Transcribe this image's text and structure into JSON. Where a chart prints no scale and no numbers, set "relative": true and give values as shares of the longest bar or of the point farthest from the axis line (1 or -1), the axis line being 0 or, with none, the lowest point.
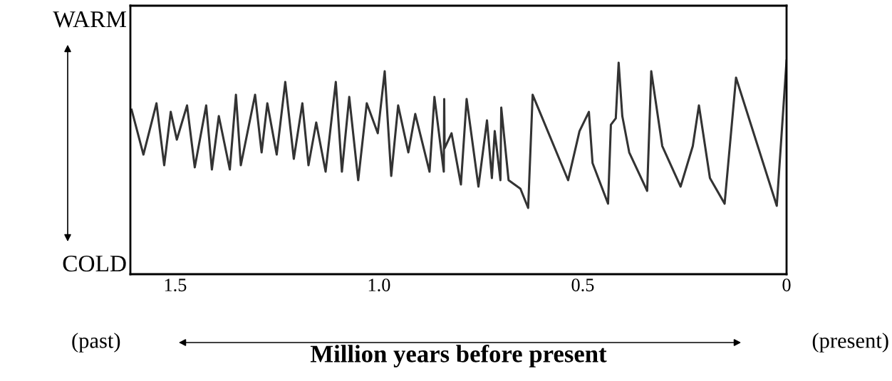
{
  "chart_data": {
    "type": "line",
    "relative": true,
    "xlabel": "Million years before present",
    "annotations": [
      "WARM",
      "COLD",
      "(past)",
      "(present)"
    ],
    "xlim": [
      1.61,
      0
    ],
    "xticks": [
      1.5,
      {
        "value": 1,
        "label": "1.0"
      },
      0.5,
      0
    ],
    "tick_labels": "x",
    "marker": "none",
    "line_style": "solid",
    "series": [
      {
        "color": "#333333",
        "x": [
          1.607,
          1.578,
          1.546,
          1.527,
          1.511,
          1.496,
          1.471,
          1.452,
          1.424,
          1.41,
          1.393,
          1.366,
          1.351,
          1.339,
          1.304,
          1.288,
          1.274,
          1.251,
          1.23,
          1.209,
          1.188,
          1.173,
          1.154,
          1.131,
          1.106,
          1.091,
          1.073,
          1.051,
          1.03,
          1.003,
          0.986,
          0.97,
          0.953,
          0.928,
          0.911,
          0.876,
          0.864,
          0.841,
          0.84,
          0.839,
          0.822,
          0.799,
          0.785,
          0.756,
          0.735,
          0.723,
          0.716,
          0.702,
          0.7,
          0.682,
          0.653,
          0.634,
          0.623,
          0.536,
          0.508,
          0.485,
          0.476,
          0.438,
          0.431,
          0.419,
          0.412,
          0.403,
          0.386,
          0.342,
          0.332,
          0.305,
          0.26,
          0.23,
          0.215,
          0.188,
          0.152,
          0.124,
          0.024,
          0.0
        ],
        "values": [
          0.77,
          0.56,
          0.8,
          0.51,
          0.76,
          0.63,
          0.79,
          0.5,
          0.79,
          0.49,
          0.74,
          0.49,
          0.84,
          0.51,
          0.84,
          0.57,
          0.8,
          0.56,
          0.9,
          0.54,
          0.8,
          0.51,
          0.71,
          0.48,
          0.9,
          0.48,
          0.83,
          0.44,
          0.8,
          0.66,
          0.95,
          0.46,
          0.79,
          0.57,
          0.75,
          0.48,
          0.83,
          0.48,
          0.82,
          0.59,
          0.66,
          0.42,
          0.82,
          0.41,
          0.72,
          0.45,
          0.67,
          0.44,
          0.78,
          0.44,
          0.4,
          0.31,
          0.84,
          0.44,
          0.67,
          0.76,
          0.52,
          0.33,
          0.7,
          0.73,
          0.99,
          0.74,
          0.57,
          0.39,
          0.95,
          0.6,
          0.41,
          0.6,
          0.79,
          0.45,
          0.33,
          0.92,
          0.32,
          1.0
        ]
      }
    ]
  }
}
